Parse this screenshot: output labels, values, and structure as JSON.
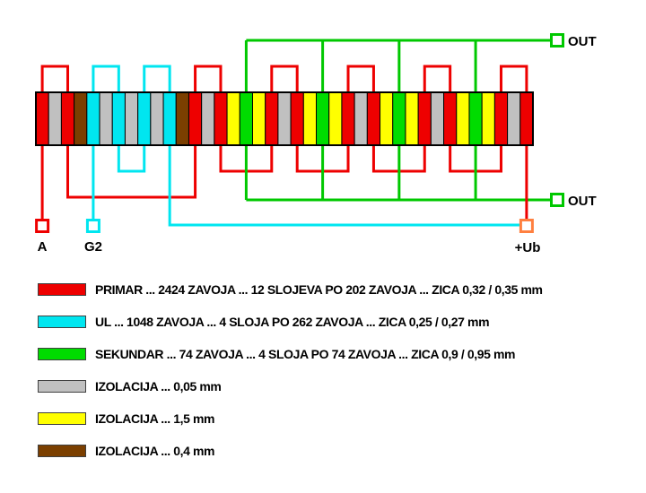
{
  "colors": {
    "red": "#EE0000",
    "cyan": "#00E6F0",
    "green": "#00DC00",
    "green_wire": "#00C800",
    "gray": "#C0C0C0",
    "yellow": "#FFFF00",
    "brown": "#7B3F00",
    "orange": "#FF8040",
    "outline": "#000000",
    "background": "#FFFFFF"
  },
  "diagram": {
    "stripes": [
      "red",
      "gray",
      "red",
      "brown",
      "cyan",
      "gray",
      "cyan",
      "gray",
      "cyan",
      "gray",
      "cyan",
      "brown",
      "red",
      "gray",
      "red",
      "yellow",
      "green",
      "yellow",
      "red",
      "gray",
      "red",
      "yellow",
      "green",
      "yellow",
      "red",
      "gray",
      "red",
      "yellow",
      "green",
      "yellow",
      "red",
      "gray",
      "red",
      "yellow",
      "green",
      "yellow",
      "red",
      "gray",
      "red"
    ],
    "connections": {
      "primary_top_loops": [
        [
          0,
          2
        ],
        [
          12,
          14
        ],
        [
          18,
          20
        ],
        [
          24,
          26
        ],
        [
          30,
          32
        ],
        [
          36,
          38
        ]
      ],
      "primary_bottom_loops": [
        [
          14,
          18
        ],
        [
          20,
          24
        ],
        [
          26,
          30
        ],
        [
          32,
          36
        ]
      ],
      "primary_bottom_long": [
        2,
        12
      ],
      "primary_lead_a_stripe": 0,
      "primary_lead_ub_stripe": 38,
      "ul_top_loops": [
        [
          4,
          6
        ],
        [
          8,
          10
        ]
      ],
      "ul_bottom_loops": [
        [
          6,
          8
        ]
      ],
      "ul_lead_g2_stripe": 4,
      "ul_lead_ub_stripe": 10,
      "secondary_stripes": [
        16,
        22,
        28,
        34
      ]
    },
    "terminals": {
      "a": {
        "label": "A"
      },
      "g2": {
        "label": "G2"
      },
      "ub": {
        "label": "+Ub"
      },
      "out_top": {
        "label": "OUT"
      },
      "out_bottom": {
        "label": "OUT"
      }
    }
  },
  "legend": {
    "items": [
      {
        "color_key": "red",
        "text": "PRIMAR ... 2424 ZAVOJA ... 12 SLOJEVA PO 202 ZAVOJA ... ZICA 0,32 / 0,35 mm"
      },
      {
        "color_key": "cyan",
        "text": "UL ... 1048 ZAVOJA ... 4 SLOJA PO 262 ZAVOJA ... ZICA 0,25 / 0,27 mm"
      },
      {
        "color_key": "green",
        "text": "SEKUNDAR ... 74 ZAVOJA ... 4 SLOJA PO 74 ZAVOJA ... ZICA 0,9 / 0,95 mm"
      },
      {
        "color_key": "gray",
        "text": "IZOLACIJA ... 0,05 mm"
      },
      {
        "color_key": "yellow",
        "text": "IZOLACIJA ... 1,5 mm"
      },
      {
        "color_key": "brown",
        "text": "IZOLACIJA ... 0,4 mm"
      }
    ]
  }
}
